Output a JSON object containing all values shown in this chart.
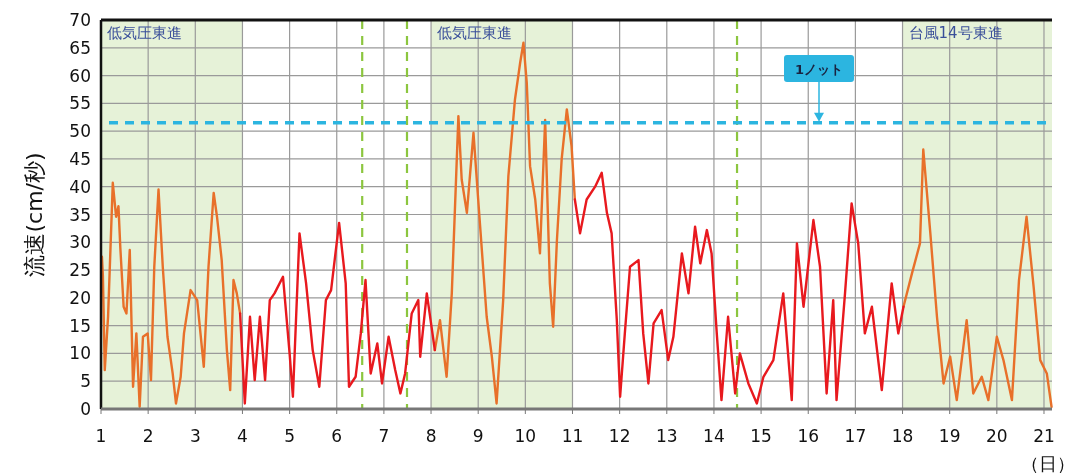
{
  "chart_data": {
    "type": "line",
    "xlabel": "（日）",
    "ylabel": "流速(cm/秒)",
    "xlim": [
      1,
      21.17
    ],
    "ylim": [
      0,
      70
    ],
    "xticks": [
      1,
      2,
      3,
      4,
      5,
      6,
      7,
      8,
      9,
      10,
      11,
      12,
      13,
      14,
      15,
      16,
      17,
      18,
      19,
      20,
      21
    ],
    "yticks": [
      0,
      5,
      10,
      15,
      20,
      25,
      30,
      35,
      40,
      45,
      50,
      55,
      60,
      65,
      70
    ],
    "grid": true,
    "series": [
      {
        "color": "#e8702a",
        "x": [
          1.02,
          1.04,
          1.08,
          1.15,
          1.25,
          1.32,
          1.37,
          1.41,
          1.48,
          1.54,
          1.61,
          1.68,
          1.75,
          1.82,
          1.89,
          1.99,
          2.06,
          2.13,
          2.22,
          2.31,
          2.41,
          2.52,
          2.59,
          2.69,
          2.76,
          2.9,
          3.04,
          3.18,
          3.28,
          3.39,
          3.46,
          3.56,
          3.67,
          3.74,
          3.81,
          3.88,
          3.95,
          null,
          8.08,
          8.19,
          8.33,
          8.44,
          8.58,
          8.65,
          8.76,
          8.9,
          9.0,
          9.18,
          9.29,
          9.39,
          9.53,
          9.64,
          9.78,
          9.89,
          9.96,
          10.03,
          10.1,
          10.21,
          10.31,
          10.42,
          10.52,
          10.59,
          10.67,
          10.77,
          10.88,
          10.98,
          11.05,
          null,
          18.02,
          18.2,
          18.37,
          18.44,
          18.59,
          18.73,
          18.87,
          19.01,
          19.15,
          19.36,
          19.5,
          19.68,
          19.82,
          20.0,
          20.14,
          20.32,
          20.47,
          20.63,
          20.78,
          20.92,
          21.06,
          21.16
        ],
        "values": [
          27.4,
          24,
          7,
          16.6,
          40.7,
          34.6,
          36.5,
          29,
          18.4,
          17.2,
          28.6,
          4,
          13.6,
          0.4,
          13,
          13.6,
          5.2,
          25.6,
          39.5,
          25.6,
          13,
          6.4,
          1,
          5.8,
          13.6,
          21.4,
          19.6,
          7.6,
          25.6,
          38.9,
          34.6,
          26.8,
          10.6,
          3.4,
          23.2,
          20.8,
          17.2,
          null,
          10.6,
          16,
          5.8,
          20.8,
          52.7,
          41.3,
          35.3,
          49.7,
          37.7,
          16.6,
          9.4,
          1,
          19.6,
          41.9,
          55.7,
          62.3,
          65.9,
          58.7,
          43.7,
          37.7,
          28,
          52,
          22.6,
          14.8,
          30.4,
          44.9,
          53.9,
          47.3,
          37.7,
          null,
          18.4,
          24.4,
          29.8,
          46.7,
          31.6,
          16.6,
          4.6,
          9.4,
          1.6,
          16,
          2.8,
          5.8,
          1.6,
          13,
          8.8,
          1.6,
          23.2,
          34.6,
          22,
          8.8,
          6.4,
          0.4
        ]
      },
      {
        "color": "#e8191e",
        "x": [
          3.95,
          4.05,
          4.16,
          4.26,
          4.37,
          4.48,
          4.58,
          4.68,
          4.86,
          5.0,
          5.07,
          5.21,
          5.35,
          5.49,
          5.63,
          5.77,
          5.88,
          6.05,
          6.19,
          6.26,
          6.4,
          6.51,
          6.61,
          6.72,
          6.86,
          6.96,
          7.1,
          7.24,
          7.35,
          7.45,
          7.59,
          7.73,
          7.77,
          7.91,
          8.08,
          null,
          11.05,
          11.16,
          11.3,
          11.48,
          11.62,
          11.73,
          11.83,
          11.94,
          12.01,
          12.11,
          12.22,
          12.4,
          12.5,
          12.61,
          12.72,
          12.89,
          13.03,
          13.14,
          13.32,
          13.46,
          13.6,
          13.71,
          13.85,
          13.95,
          14.06,
          14.16,
          14.3,
          14.45,
          14.55,
          14.73,
          14.91,
          15.05,
          15.26,
          15.47,
          15.65,
          15.76,
          15.9,
          16.11,
          16.25,
          16.39,
          16.53,
          16.6,
          16.78,
          16.92,
          17.06,
          17.2,
          17.35,
          17.56,
          17.77,
          17.91,
          18.02
        ],
        "values": [
          17.2,
          1,
          16.6,
          5.2,
          16.6,
          5.2,
          19.6,
          20.8,
          23.8,
          10,
          2.2,
          31.6,
          22.6,
          10.6,
          4,
          19.6,
          21.4,
          33.5,
          22.6,
          4,
          5.8,
          13.6,
          23.2,
          6.4,
          11.8,
          4.6,
          13,
          7,
          2.8,
          6.4,
          17.2,
          19.6,
          9.4,
          20.8,
          10.6,
          null,
          37.7,
          31.6,
          37.7,
          40,
          42.5,
          35.3,
          31.6,
          16,
          2.2,
          13.6,
          25.6,
          26.8,
          13.6,
          4.6,
          15.4,
          17.8,
          8.8,
          13,
          28,
          20.8,
          32.8,
          26.2,
          32.2,
          28,
          13.6,
          1.6,
          16.6,
          2.8,
          10,
          4.6,
          1,
          5.8,
          8.8,
          20.8,
          1.6,
          29.8,
          18.4,
          34,
          25.6,
          2.8,
          19.6,
          1.6,
          20.8,
          37,
          29.8,
          13.6,
          18.4,
          3.4,
          22.6,
          13.6,
          18.4
        ]
      }
    ],
    "ref_lines": [
      {
        "axis": "y",
        "value": 51.5,
        "label": "1ノット",
        "color": "#2cb5e0",
        "line_style": "dashed"
      },
      {
        "axis": "x",
        "value": 6.54,
        "color": "#8cc63f",
        "line_style": "dashed"
      },
      {
        "axis": "x",
        "value": 7.49,
        "color": "#8cc63f",
        "line_style": "dashed"
      },
      {
        "axis": "x",
        "value": 14.49,
        "color": "#8cc63f",
        "line_style": "dashed"
      }
    ],
    "bands": [
      {
        "axis": "x",
        "from": 1,
        "to": 4,
        "label": "低気圧東進",
        "color": "#e6f2d8"
      },
      {
        "axis": "x",
        "from": 8,
        "to": 11,
        "label": "低気圧東進",
        "color": "#e6f2d8"
      },
      {
        "axis": "x",
        "from": 18,
        "to": 21.17,
        "label": "台風14号東進",
        "color": "#e6f2d8"
      }
    ]
  }
}
